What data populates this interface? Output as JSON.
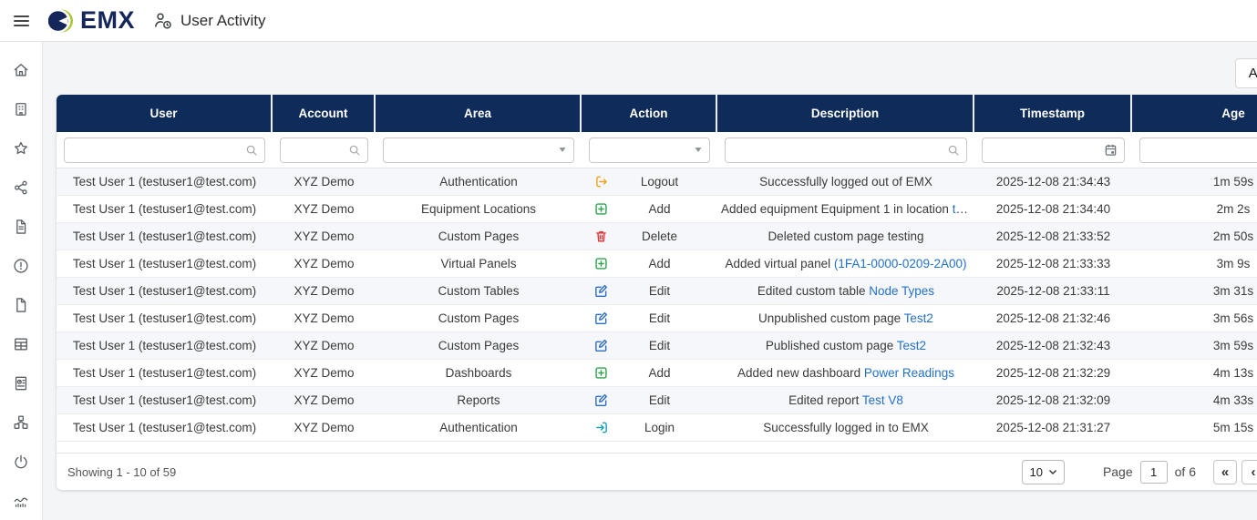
{
  "topbar": {
    "brand": "EMX",
    "title": "User Activity"
  },
  "colors": {
    "navy": "#0e2b59",
    "logo_green": "#a6c92d",
    "link_blue": "#2470c8",
    "logout_orange": "#f0a51f",
    "add_green": "#2ea44f",
    "delete_red": "#dd3c3c",
    "edit_blue": "#2d6fc2",
    "login_teal": "#17a2b8"
  },
  "actions": {
    "label": "Actions"
  },
  "sidebar": {
    "items": [
      {
        "name": "home"
      },
      {
        "name": "buildings"
      },
      {
        "name": "favorites"
      },
      {
        "name": "share"
      },
      {
        "name": "documents"
      },
      {
        "name": "alerts"
      },
      {
        "name": "pages"
      },
      {
        "name": "tables"
      },
      {
        "name": "meters"
      },
      {
        "name": "nodes"
      },
      {
        "name": "power"
      },
      {
        "name": "activity"
      }
    ]
  },
  "table": {
    "columns": [
      {
        "key": "user",
        "label": "User",
        "filter": "search"
      },
      {
        "key": "account",
        "label": "Account",
        "filter": "search"
      },
      {
        "key": "area",
        "label": "Area",
        "filter": "select"
      },
      {
        "key": "action",
        "label": "Action",
        "filter": "select"
      },
      {
        "key": "description",
        "label": "Description",
        "filter": "search"
      },
      {
        "key": "timestamp",
        "label": "Timestamp",
        "filter": "date"
      },
      {
        "key": "age",
        "label": "Age",
        "filter": "select",
        "sorted": "asc"
      }
    ],
    "rows": [
      {
        "user": "Test User 1 (testuser1@test.com)",
        "account": "XYZ Demo",
        "area": "Authentication",
        "icon": "logout",
        "action": "Logout",
        "desc": "Successfully logged out of EMX",
        "link": null,
        "timestamp": "2025-12-08 21:34:43",
        "age": "1m 59s"
      },
      {
        "user": "Test User 1 (testuser1@test.com)",
        "account": "XYZ Demo",
        "area": "Equipment Locations",
        "icon": "add",
        "action": "Add",
        "desc": "Added equipment Equipment 1 in location ",
        "link": "test",
        "timestamp": "2025-12-08 21:34:40",
        "age": "2m 2s"
      },
      {
        "user": "Test User 1 (testuser1@test.com)",
        "account": "XYZ Demo",
        "area": "Custom Pages",
        "icon": "delete",
        "action": "Delete",
        "desc": "Deleted custom page testing",
        "link": null,
        "timestamp": "2025-12-08 21:33:52",
        "age": "2m 50s"
      },
      {
        "user": "Test User 1 (testuser1@test.com)",
        "account": "XYZ Demo",
        "area": "Virtual Panels",
        "icon": "add",
        "action": "Add",
        "desc": "Added virtual panel ",
        "link": "(1FA1-0000-0209-2A00)",
        "timestamp": "2025-12-08 21:33:33",
        "age": "3m 9s"
      },
      {
        "user": "Test User 1 (testuser1@test.com)",
        "account": "XYZ Demo",
        "area": "Custom Tables",
        "icon": "edit",
        "action": "Edit",
        "desc": "Edited custom table ",
        "link": "Node Types",
        "timestamp": "2025-12-08 21:33:11",
        "age": "3m 31s"
      },
      {
        "user": "Test User 1 (testuser1@test.com)",
        "account": "XYZ Demo",
        "area": "Custom Pages",
        "icon": "edit",
        "action": "Edit",
        "desc": "Unpublished custom page ",
        "link": "Test2",
        "timestamp": "2025-12-08 21:32:46",
        "age": "3m 56s"
      },
      {
        "user": "Test User 1 (testuser1@test.com)",
        "account": "XYZ Demo",
        "area": "Custom Pages",
        "icon": "edit",
        "action": "Edit",
        "desc": "Published custom page ",
        "link": "Test2",
        "timestamp": "2025-12-08 21:32:43",
        "age": "3m 59s"
      },
      {
        "user": "Test User 1 (testuser1@test.com)",
        "account": "XYZ Demo",
        "area": "Dashboards",
        "icon": "add",
        "action": "Add",
        "desc": "Added new dashboard ",
        "link": "Power Readings",
        "timestamp": "2025-12-08 21:32:29",
        "age": "4m 13s"
      },
      {
        "user": "Test User 1 (testuser1@test.com)",
        "account": "XYZ Demo",
        "area": "Reports",
        "icon": "edit",
        "action": "Edit",
        "desc": "Edited report ",
        "link": "Test V8",
        "timestamp": "2025-12-08 21:32:09",
        "age": "4m 33s"
      },
      {
        "user": "Test User 1 (testuser1@test.com)",
        "account": "XYZ Demo",
        "area": "Authentication",
        "icon": "login",
        "action": "Login",
        "desc": "Successfully logged in to EMX",
        "link": null,
        "timestamp": "2025-12-08 21:31:27",
        "age": "5m 15s"
      }
    ]
  },
  "footer": {
    "showing": "Showing 1 - 10 of 59",
    "page_size": "10",
    "page_word": "Page",
    "page_number": "1",
    "of_word": "of 6",
    "pager": {
      "first": "«",
      "prev": "‹",
      "next": "›",
      "last": "»"
    }
  }
}
